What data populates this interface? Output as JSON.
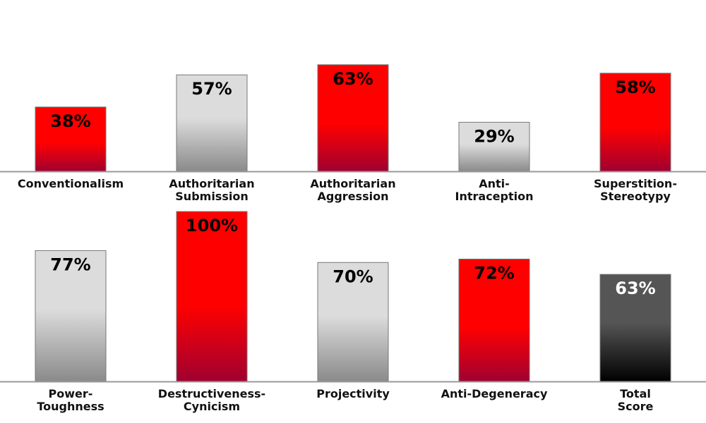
{
  "chart_data": [
    {
      "type": "bar",
      "categories": [
        [
          "Conventionalism"
        ],
        [
          "Authoritarian",
          "Submission"
        ],
        [
          "Authoritarian",
          "Aggression"
        ],
        [
          "Anti-",
          "Intraception"
        ],
        [
          "Superstition-",
          "Stereotypy"
        ]
      ],
      "values": [
        38,
        57,
        63,
        29,
        58
      ],
      "value_labels": [
        "38%",
        "57%",
        "63%",
        "29%",
        "58%"
      ],
      "bar_styles": [
        "red",
        "gray",
        "red",
        "gray",
        "red"
      ],
      "ylim": [
        0,
        100
      ],
      "grid": false
    },
    {
      "type": "bar",
      "categories": [
        [
          "Power-",
          "Toughness"
        ],
        [
          "Destructiveness-",
          "Cynicism"
        ],
        [
          "Projectivity"
        ],
        [
          "Anti-Degeneracy"
        ],
        [
          "Total",
          "Score"
        ]
      ],
      "values": [
        77,
        100,
        70,
        72,
        63
      ],
      "value_labels": [
        "77%",
        "100%",
        "70%",
        "72%",
        "63%"
      ],
      "bar_styles": [
        "gray",
        "red",
        "gray",
        "red",
        "dark"
      ],
      "ylim": [
        0,
        100
      ],
      "grid": false
    }
  ],
  "colors": {
    "red_top": "#ff0000",
    "red_bottom": "#a00030",
    "gray_top": "#dcdcdc",
    "gray_bottom": "#8a8a8a",
    "dark_top": "#555555",
    "dark_bottom": "#000000",
    "axis": "#999999"
  }
}
